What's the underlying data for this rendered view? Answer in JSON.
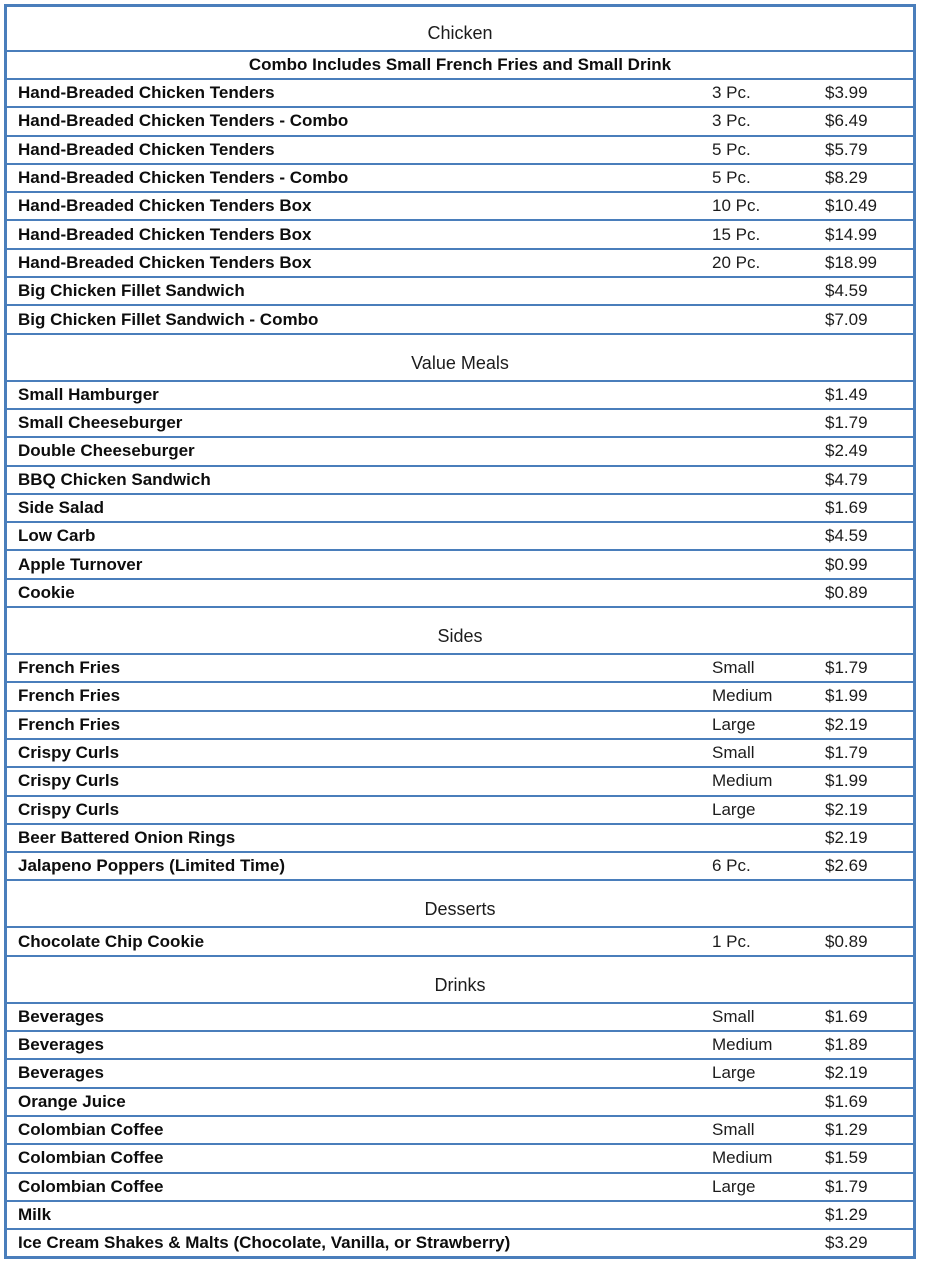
{
  "colors": {
    "border": "#4A7EBB",
    "text": "#111111",
    "background": "#ffffff"
  },
  "menu": {
    "sections": [
      {
        "title": "Chicken",
        "note": "Combo Includes Small French Fries and Small Drink",
        "items": [
          {
            "name": "Hand-Breaded Chicken Tenders",
            "size": "3 Pc.",
            "price": "$3.99"
          },
          {
            "name": "Hand-Breaded Chicken Tenders - Combo",
            "size": "3 Pc.",
            "price": "$6.49"
          },
          {
            "name": "Hand-Breaded Chicken Tenders",
            "size": "5 Pc.",
            "price": "$5.79"
          },
          {
            "name": "Hand-Breaded Chicken Tenders - Combo",
            "size": "5 Pc.",
            "price": "$8.29"
          },
          {
            "name": "Hand-Breaded Chicken Tenders Box",
            "size": "10 Pc.",
            "price": "$10.49"
          },
          {
            "name": "Hand-Breaded Chicken Tenders Box",
            "size": "15 Pc.",
            "price": "$14.99"
          },
          {
            "name": "Hand-Breaded Chicken Tenders Box",
            "size": "20 Pc.",
            "price": "$18.99"
          },
          {
            "name": "Big Chicken Fillet Sandwich",
            "size": "",
            "price": "$4.59"
          },
          {
            "name": "Big Chicken Fillet Sandwich - Combo",
            "size": "",
            "price": "$7.09"
          }
        ]
      },
      {
        "title": "Value Meals",
        "note": "",
        "items": [
          {
            "name": "Small Hamburger",
            "size": "",
            "price": "$1.49"
          },
          {
            "name": "Small Cheeseburger",
            "size": "",
            "price": "$1.79"
          },
          {
            "name": "Double Cheeseburger",
            "size": "",
            "price": "$2.49"
          },
          {
            "name": "BBQ Chicken Sandwich",
            "size": "",
            "price": "$4.79"
          },
          {
            "name": "Side Salad",
            "size": "",
            "price": "$1.69"
          },
          {
            "name": "Low Carb",
            "size": "",
            "price": "$4.59"
          },
          {
            "name": "Apple Turnover",
            "size": "",
            "price": "$0.99"
          },
          {
            "name": "Cookie",
            "size": "",
            "price": "$0.89"
          }
        ]
      },
      {
        "title": "Sides",
        "note": "",
        "items": [
          {
            "name": "French Fries",
            "size": "Small",
            "price": "$1.79"
          },
          {
            "name": "French Fries",
            "size": "Medium",
            "price": "$1.99"
          },
          {
            "name": "French Fries",
            "size": "Large",
            "price": "$2.19"
          },
          {
            "name": "Crispy Curls",
            "size": "Small",
            "price": "$1.79"
          },
          {
            "name": "Crispy Curls",
            "size": "Medium",
            "price": "$1.99"
          },
          {
            "name": "Crispy Curls",
            "size": "Large",
            "price": "$2.19"
          },
          {
            "name": "Beer Battered Onion Rings",
            "size": "",
            "price": "$2.19"
          },
          {
            "name": "Jalapeno Poppers (Limited Time)",
            "size": "6 Pc.",
            "price": "$2.69"
          }
        ]
      },
      {
        "title": "Desserts",
        "note": "",
        "items": [
          {
            "name": "Chocolate Chip Cookie",
            "size": "1 Pc.",
            "price": "$0.89"
          }
        ]
      },
      {
        "title": "Drinks",
        "note": "",
        "items": [
          {
            "name": "Beverages",
            "size": "Small",
            "price": "$1.69"
          },
          {
            "name": "Beverages",
            "size": "Medium",
            "price": "$1.89"
          },
          {
            "name": "Beverages",
            "size": "Large",
            "price": "$2.19"
          },
          {
            "name": "Orange Juice",
            "size": "",
            "price": "$1.69"
          },
          {
            "name": "Colombian Coffee",
            "size": "Small",
            "price": "$1.29"
          },
          {
            "name": "Colombian Coffee",
            "size": "Medium",
            "price": "$1.59"
          },
          {
            "name": "Colombian Coffee",
            "size": "Large",
            "price": "$1.79"
          },
          {
            "name": "Milk",
            "size": "",
            "price": "$1.29"
          },
          {
            "name": "Ice Cream Shakes & Malts (Chocolate, Vanilla, or Strawberry)",
            "size": "",
            "price": "$3.29"
          }
        ]
      }
    ]
  }
}
